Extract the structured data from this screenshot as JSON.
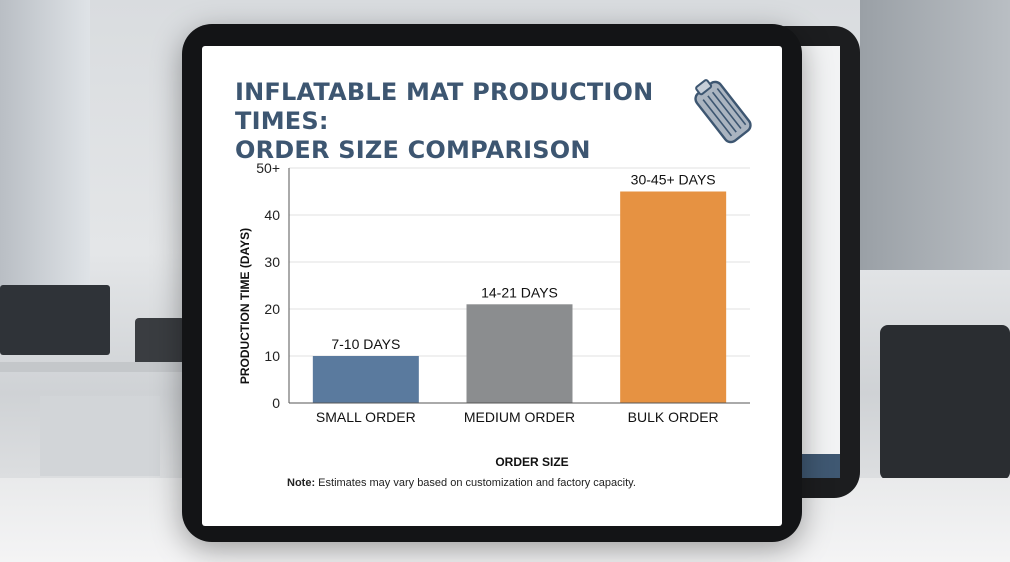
{
  "title_line1": "INFLATABLE MAT PRODUCTION TIMES:",
  "title_line2": "ORDER SIZE COMPARISON",
  "icon": "inflatable-mat-icon",
  "note_label": "Note:",
  "note_text": "Estimates may vary based on customization and factory capacity.",
  "colors": {
    "title": "#3d5671",
    "small": "#5a7a9e",
    "medium": "#8b8d8f",
    "bulk": "#e69242"
  },
  "chart_data": {
    "type": "bar",
    "categories": [
      "SMALL ORDER",
      "MEDIUM ORDER",
      "BULK ORDER"
    ],
    "values": [
      10,
      21,
      45
    ],
    "data_labels": [
      "7-10 DAYS",
      "14-21 DAYS",
      "30-45+ DAYS"
    ],
    "bar_colors": [
      "#5a7a9e",
      "#8b8d8f",
      "#e69242"
    ],
    "xlabel": "ORDER SIZE",
    "ylabel": "PRODUCTION TIME (DAYS)",
    "ylim": [
      0,
      50
    ],
    "y_ticks": [
      0,
      10,
      20,
      30,
      40,
      50
    ],
    "y_tick_labels": [
      "0",
      "10",
      "20",
      "30",
      "40",
      "50+"
    ],
    "grid": true
  }
}
